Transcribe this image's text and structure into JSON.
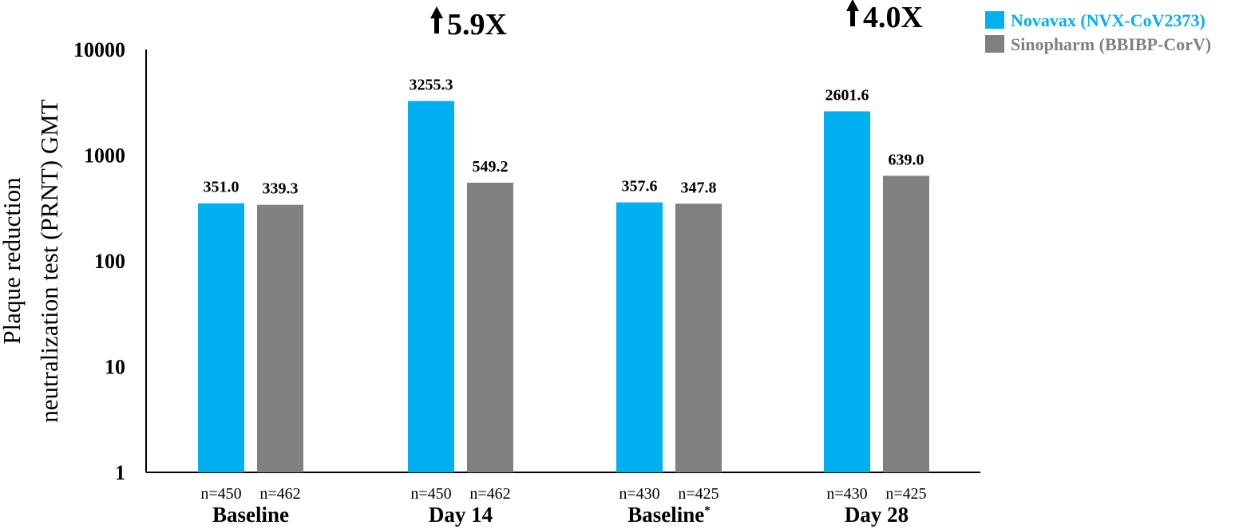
{
  "chart_data": {
    "type": "bar",
    "ylabel_lines": [
      "Plaque reduction",
      "neutralization test (PRNT) GMT"
    ],
    "y_scale": "log",
    "ylim": [
      1,
      10000
    ],
    "y_ticks": [
      "1",
      "10",
      "100",
      "1000",
      "10000"
    ],
    "categories": [
      {
        "label": "Baseline",
        "superscript": ""
      },
      {
        "label": "Day 14",
        "superscript": ""
      },
      {
        "label": "Baseline",
        "superscript": "*"
      },
      {
        "label": "Day 28",
        "superscript": ""
      }
    ],
    "series": [
      {
        "name": "Novavax (NVX-CoV2373)",
        "color": "#00b0f0",
        "values": [
          351.0,
          3255.3,
          357.6,
          2601.6
        ],
        "value_labels": [
          "351.0",
          "3255.3",
          "357.6",
          "2601.6"
        ],
        "n_labels": [
          "n=450",
          "n=450",
          "n=430",
          "n=430"
        ]
      },
      {
        "name": "Sinopharm (BBIBP-CorV)",
        "color": "#808080",
        "values": [
          339.3,
          549.2,
          347.8,
          639.0
        ],
        "value_labels": [
          "339.3",
          "549.2",
          "347.8",
          "639.0"
        ],
        "n_labels": [
          "n=462",
          "n=462",
          "n=425",
          "n=425"
        ]
      }
    ],
    "annotations": [
      {
        "text": "5.9X",
        "arrow": "up",
        "category_index": 1
      },
      {
        "text": "4.0X",
        "arrow": "up",
        "category_index": 3
      }
    ],
    "legend_position": "top-right",
    "grid": false
  }
}
